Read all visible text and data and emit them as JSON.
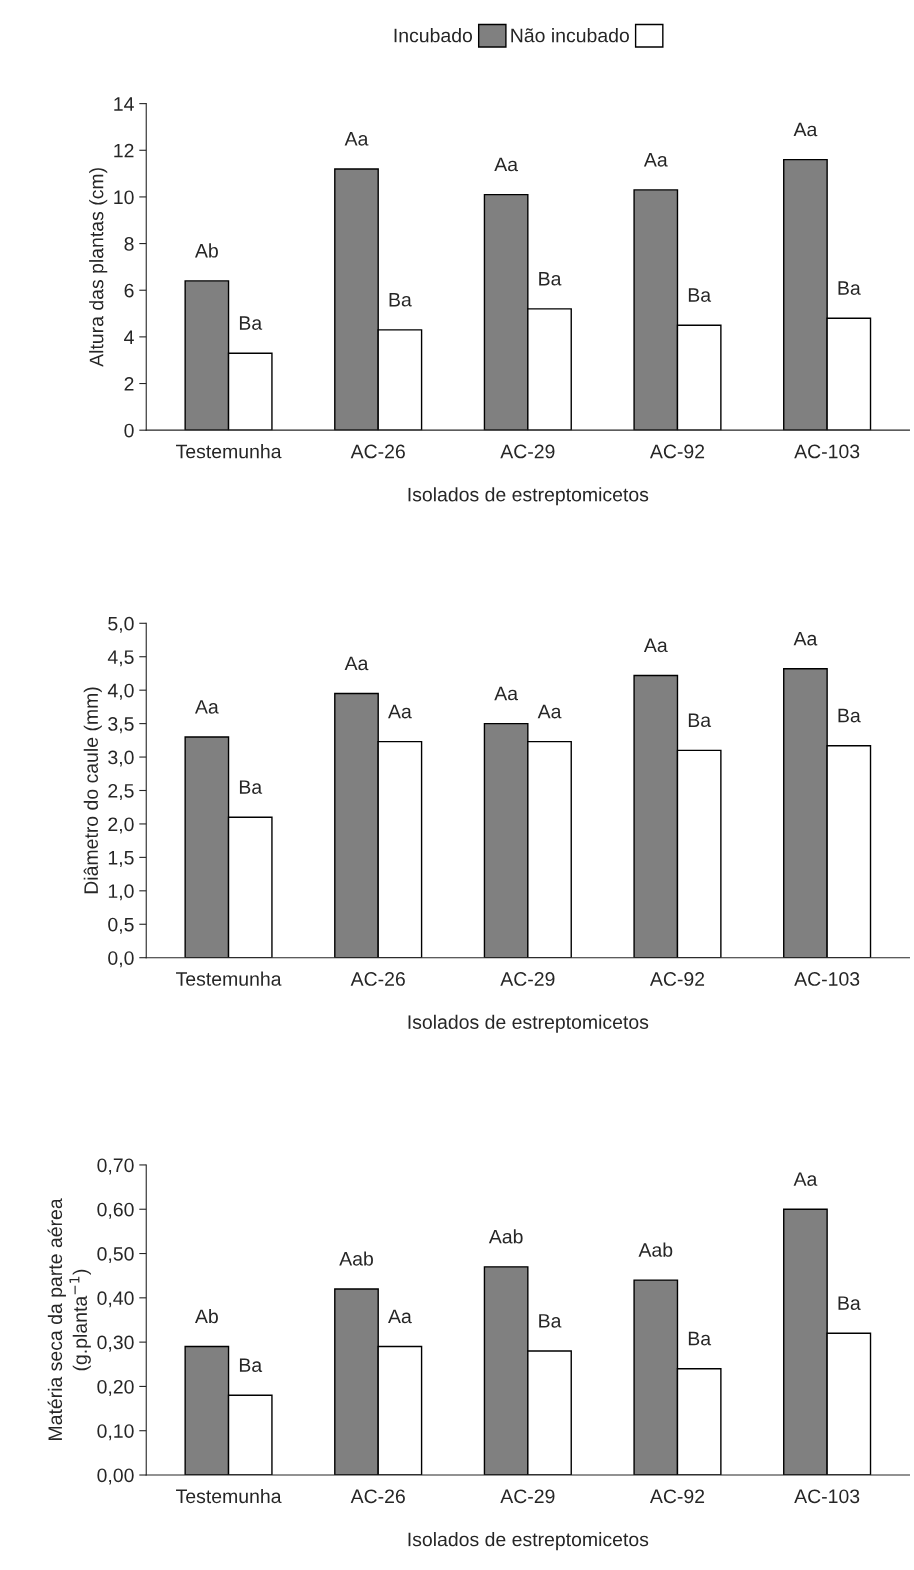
{
  "chart_data": [
    {
      "type": "bar",
      "xlabel": "Isolados de estreptomicetos",
      "ylabel": "Altura das plantas (cm)",
      "categories": [
        "Testemunha",
        "AC-26",
        "AC-29",
        "AC-92",
        "AC-103"
      ],
      "ylim": [
        0,
        14
      ],
      "yticks": [
        0,
        2,
        4,
        6,
        8,
        10,
        12,
        14
      ],
      "legend": "top",
      "grid": false,
      "series": [
        {
          "name": "Incubado",
          "color": "#808080",
          "values": [
            6.4,
            11.2,
            10.1,
            10.3,
            11.6
          ],
          "value_labels": [
            "Ab",
            "Aa",
            "Aa",
            "Aa",
            "Aa"
          ]
        },
        {
          "name": "Não incubado",
          "color": "#ffffff",
          "values": [
            3.3,
            4.3,
            5.2,
            4.5,
            4.8
          ],
          "value_labels": [
            "Ba",
            "Ba",
            "Ba",
            "Ba",
            "Ba"
          ]
        }
      ]
    },
    {
      "type": "bar",
      "xlabel": "Isolados de estreptomicetos",
      "ylabel": "Diâmetro do caule (mm)",
      "categories": [
        "Testemunha",
        "AC-26",
        "AC-29",
        "AC-92",
        "AC-103"
      ],
      "ylim": [
        0,
        5
      ],
      "yticks": [
        {
          "value": 0,
          "label": "0,0"
        },
        {
          "value": 0.5,
          "label": "0,5"
        },
        {
          "value": 1,
          "label": "1,0"
        },
        {
          "value": 1.5,
          "label": "1,5"
        },
        {
          "value": 2,
          "label": "2,0"
        },
        {
          "value": 2.5,
          "label": "2,5"
        },
        {
          "value": 3,
          "label": "3,0"
        },
        {
          "value": 3.5,
          "label": "3,5"
        },
        {
          "value": 4,
          "label": "4,0"
        },
        {
          "value": 4.5,
          "label": "4,5"
        },
        {
          "value": 5,
          "label": "5,0"
        }
      ],
      "grid": false,
      "series": [
        {
          "color": "#808080",
          "values": [
            3.3,
            3.95,
            3.5,
            4.22,
            4.32
          ],
          "value_labels": [
            "Aa",
            "Aa",
            "Aa",
            "Aa",
            "Aa"
          ]
        },
        {
          "color": "#ffffff",
          "values": [
            2.1,
            3.23,
            3.23,
            3.1,
            3.17
          ],
          "value_labels": [
            "Ba",
            "Aa",
            "Aa",
            "Ba",
            "Ba"
          ]
        }
      ]
    },
    {
      "type": "bar",
      "xlabel": "Isolados de estreptomicetos",
      "ylabel": "Matéria seca da parte aérea\n(g.planta$^{−1}$)",
      "categories": [
        "Testemunha",
        "AC-26",
        "AC-29",
        "AC-92",
        "AC-103"
      ],
      "ylim": [
        0,
        0.7
      ],
      "yticks": [
        {
          "value": 0,
          "label": "0,00"
        },
        {
          "value": 0.1,
          "label": "0,10"
        },
        {
          "value": 0.2,
          "label": "0,20"
        },
        {
          "value": 0.3,
          "label": "0,30"
        },
        {
          "value": 0.4,
          "label": "0,40"
        },
        {
          "value": 0.5,
          "label": "0,50"
        },
        {
          "value": 0.6,
          "label": "0,60"
        },
        {
          "value": 0.7,
          "label": "0,70"
        }
      ],
      "grid": false,
      "series": [
        {
          "color": "#808080",
          "values": [
            0.29,
            0.42,
            0.47,
            0.44,
            0.6
          ],
          "value_labels": [
            "Ab",
            "Aab",
            "Aab",
            "Aab",
            "Aa"
          ]
        },
        {
          "color": "#ffffff",
          "values": [
            0.18,
            0.29,
            0.28,
            0.24,
            0.32
          ],
          "value_labels": [
            "Ba",
            "Aa",
            "Ba",
            "Ba",
            "Ba"
          ]
        }
      ]
    }
  ]
}
